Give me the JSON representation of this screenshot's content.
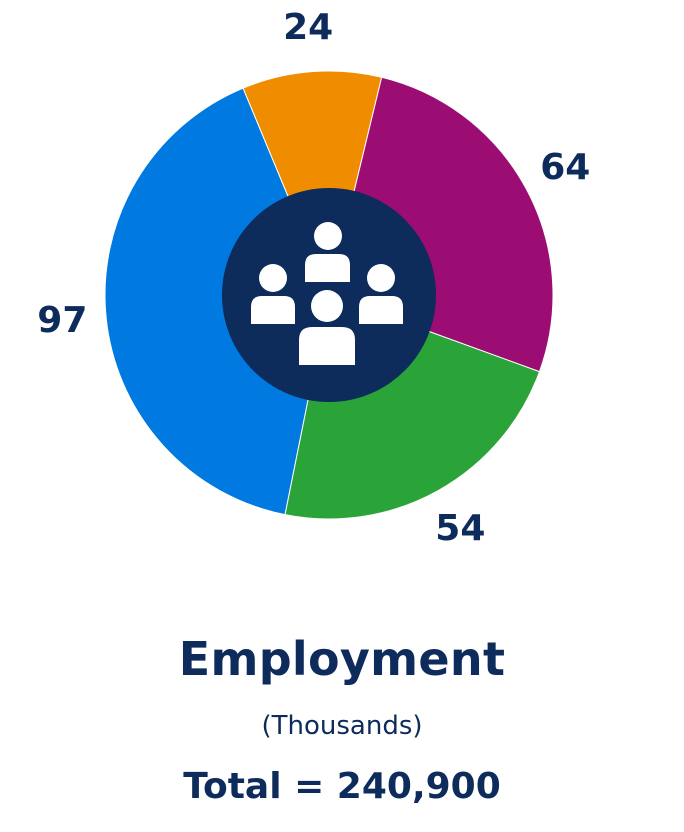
{
  "chart_data": {
    "type": "donut",
    "slices": [
      {
        "label": "54",
        "value": 54,
        "color": "#2aa339"
      },
      {
        "label": "97",
        "value": 97,
        "color": "#0079e0"
      },
      {
        "label": "24",
        "value": 24,
        "color": "#f08c00"
      },
      {
        "label": "64",
        "value": 64,
        "color": "#9b0d73"
      }
    ],
    "center_icon": "people-group-icon",
    "center_color": "#0d2b5b",
    "label_color": "#0d2b5b",
    "title": "Employment",
    "subtitle": "(Thousands)",
    "total_text": "Total = 240,900"
  }
}
